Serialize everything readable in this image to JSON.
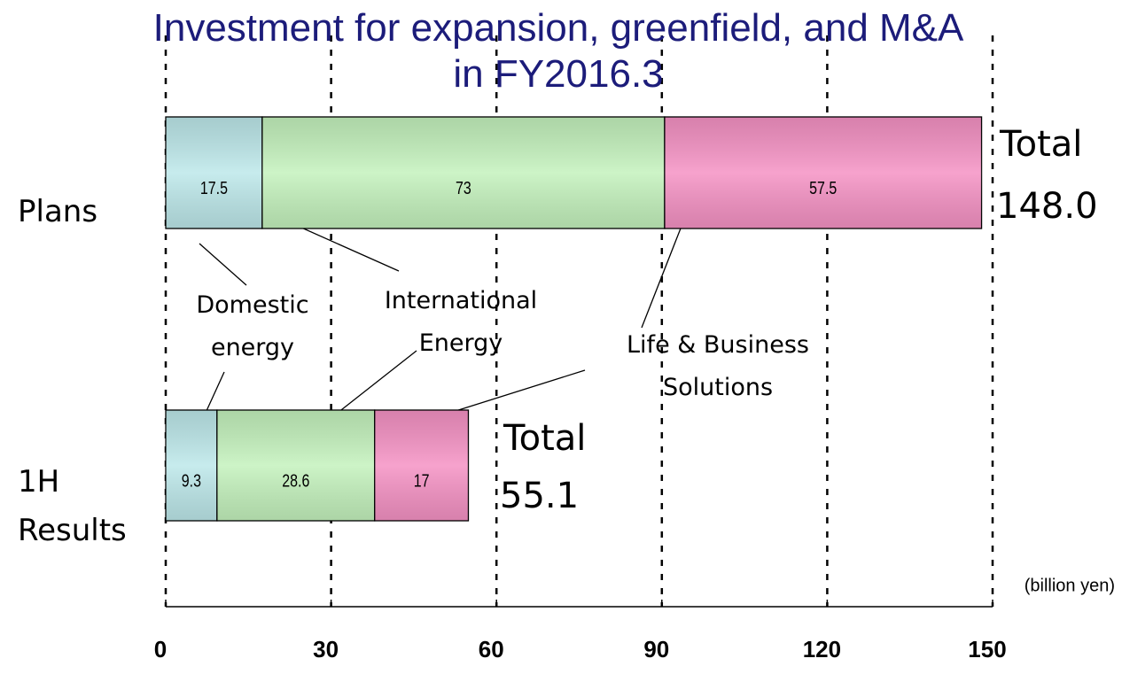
{
  "chart_data": {
    "type": "stacked-bar-horizontal",
    "title": "Investment for expansion, greenfield, and M&A in FY2016.3",
    "categories": [
      "Plans",
      "1H Results"
    ],
    "series": [
      {
        "name": "Domestic energy",
        "color": "#bde8ea",
        "values": [
          17.5,
          9.3
        ]
      },
      {
        "name": "International Energy",
        "color": "#c4f2bd",
        "values": [
          73,
          28.6
        ]
      },
      {
        "name": "Life & Business Solutions",
        "color": "#f592c4",
        "values": [
          57.5,
          17
        ]
      }
    ],
    "totals": {
      "label": "Total",
      "values": [
        148,
        55.1
      ],
      "value_labels": [
        "148.0",
        "55.1"
      ]
    },
    "unit_label": "(billion yen)",
    "xlim": [
      0,
      150
    ],
    "xticks": [
      0,
      30,
      60,
      90,
      120,
      150
    ],
    "grid": true
  }
}
